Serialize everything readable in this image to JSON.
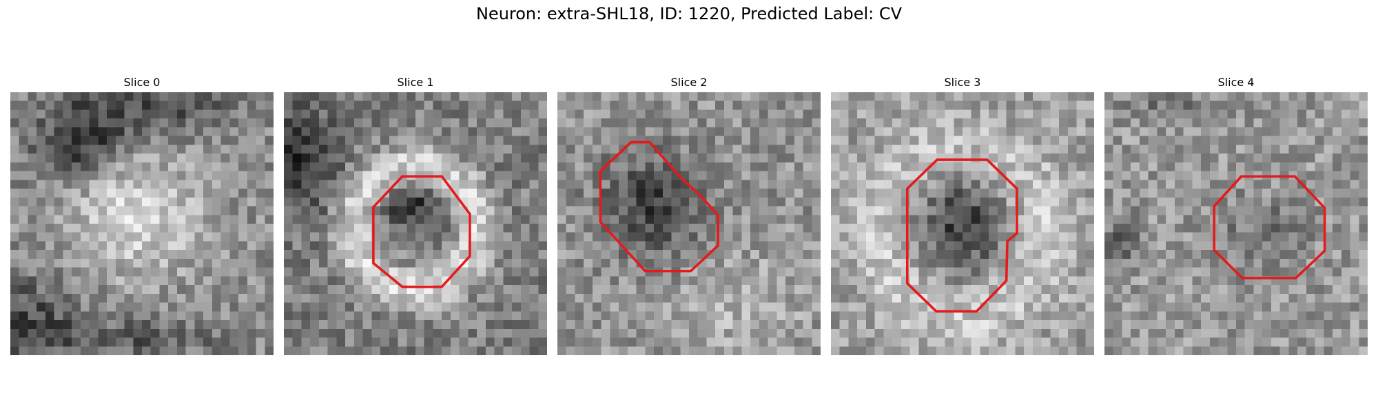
{
  "figure": {
    "suptitle": "Neuron: extra-SHL18, ID: 1220, Predicted Label: CV",
    "contour_color": "#e41a1c",
    "colormap": "gray",
    "grid_size": 30
  },
  "panels": [
    {
      "title": "Slice 0",
      "has_contour": false
    },
    {
      "title": "Slice 1",
      "has_contour": true
    },
    {
      "title": "Slice 2",
      "has_contour": true
    },
    {
      "title": "Slice 3",
      "has_contour": true
    },
    {
      "title": "Slice 4",
      "has_contour": true
    }
  ]
}
